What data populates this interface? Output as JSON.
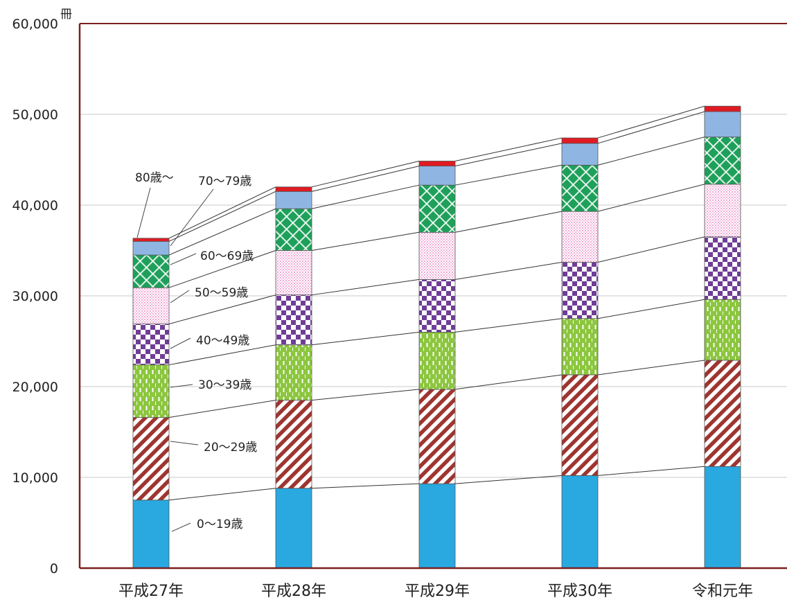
{
  "chart_data": {
    "type": "bar",
    "stacked": true,
    "unit": "冊",
    "categories": [
      "平成27年",
      "平成28年",
      "平成29年",
      "平成30年",
      "令和元年"
    ],
    "ylim": [
      0,
      60000
    ],
    "yticks": [
      "0",
      "10,000",
      "20,000",
      "30,000",
      "40,000",
      "50,000",
      "60,000"
    ],
    "ytick_values": [
      0,
      10000,
      20000,
      30000,
      40000,
      50000,
      60000
    ],
    "grid": true,
    "series": [
      {
        "name": "0～19歳",
        "color": "#29a9e0",
        "pattern": "solid",
        "values": [
          7500,
          8800,
          9300,
          10200,
          11200
        ]
      },
      {
        "name": "20～29歳",
        "color": "#9e3530",
        "pattern": "diag",
        "values": [
          9100,
          9700,
          10400,
          11100,
          11700
        ]
      },
      {
        "name": "30～39歳",
        "color": "#8cc63f",
        "pattern": "dash",
        "values": [
          5800,
          6100,
          6300,
          6200,
          6700
        ]
      },
      {
        "name": "40～49歳",
        "color": "#6f3d96",
        "pattern": "check",
        "values": [
          4500,
          5500,
          5800,
          6200,
          6900
        ]
      },
      {
        "name": "50～59歳",
        "color": "#f4bde0",
        "pattern": "dots",
        "values": [
          4000,
          4900,
          5200,
          5600,
          5800
        ]
      },
      {
        "name": "60～69歳",
        "color": "#1ea05a",
        "pattern": "lattice",
        "values": [
          3600,
          4600,
          5200,
          5100,
          5200
        ]
      },
      {
        "name": "70～79歳",
        "color": "#8fb6e3",
        "pattern": "solid",
        "values": [
          1500,
          1900,
          2100,
          2400,
          2800
        ]
      },
      {
        "name": "80歳～",
        "color": "#e01b23",
        "pattern": "solid",
        "values": [
          350,
          500,
          550,
          600,
          600
        ]
      }
    ]
  }
}
